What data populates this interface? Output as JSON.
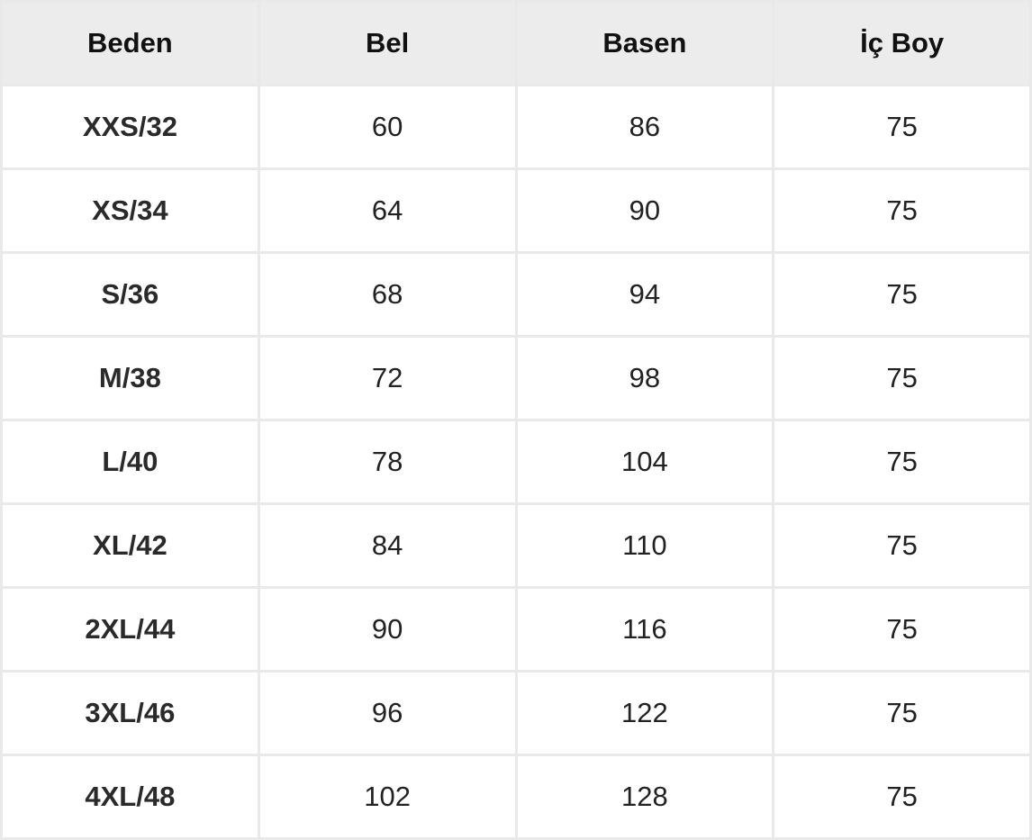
{
  "headers": [
    "Beden",
    "Bel",
    "Basen",
    "İç Boy"
  ],
  "rows": [
    [
      "XXS/32",
      "60",
      "86",
      "75"
    ],
    [
      "XS/34",
      "64",
      "90",
      "75"
    ],
    [
      "S/36",
      "68",
      "94",
      "75"
    ],
    [
      "M/38",
      "72",
      "98",
      "75"
    ],
    [
      "L/40",
      "78",
      "104",
      "75"
    ],
    [
      "XL/42",
      "84",
      "110",
      "75"
    ],
    [
      "2XL/44",
      "90",
      "116",
      "75"
    ],
    [
      "3XL/46",
      "96",
      "122",
      "75"
    ],
    [
      "4XL/48",
      "102",
      "128",
      "75"
    ]
  ]
}
